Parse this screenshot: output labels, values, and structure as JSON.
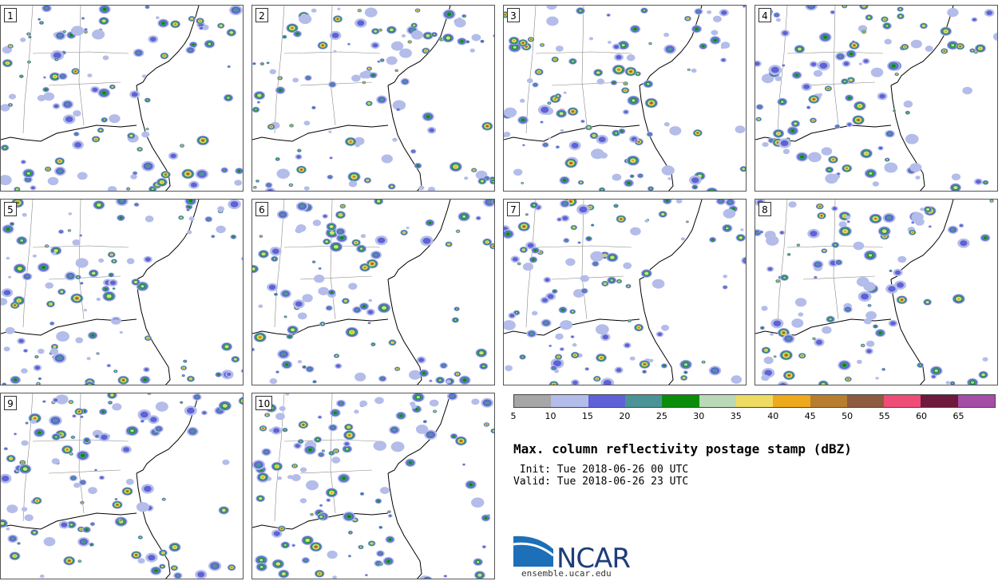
{
  "title": "Max. column reflectivity postage stamp (dBZ)",
  "init_line": " Init: Tue 2018-06-26 00 UTC",
  "valid_line": "Valid: Tue 2018-06-26 23 UTC",
  "members": [
    "1",
    "2",
    "3",
    "4",
    "5",
    "6",
    "7",
    "8",
    "9",
    "10"
  ],
  "colorbar": {
    "ticks": [
      "5",
      "10",
      "15",
      "20",
      "25",
      "30",
      "35",
      "40",
      "45",
      "50",
      "55",
      "60",
      "65"
    ],
    "colors": [
      "#a6a6a6",
      "#b4bde9",
      "#5f61d6",
      "#4a9497",
      "#0a8e0a",
      "#b9d9b7",
      "#eedb62",
      "#eea91c",
      "#b87e2f",
      "#8f5a3e",
      "#ef4c77",
      "#6e1a3c",
      "#a54ea6"
    ]
  },
  "logo": {
    "name": "NCAR",
    "url": "ensemble.ucar.edu",
    "blue": "#1d6fb8"
  }
}
